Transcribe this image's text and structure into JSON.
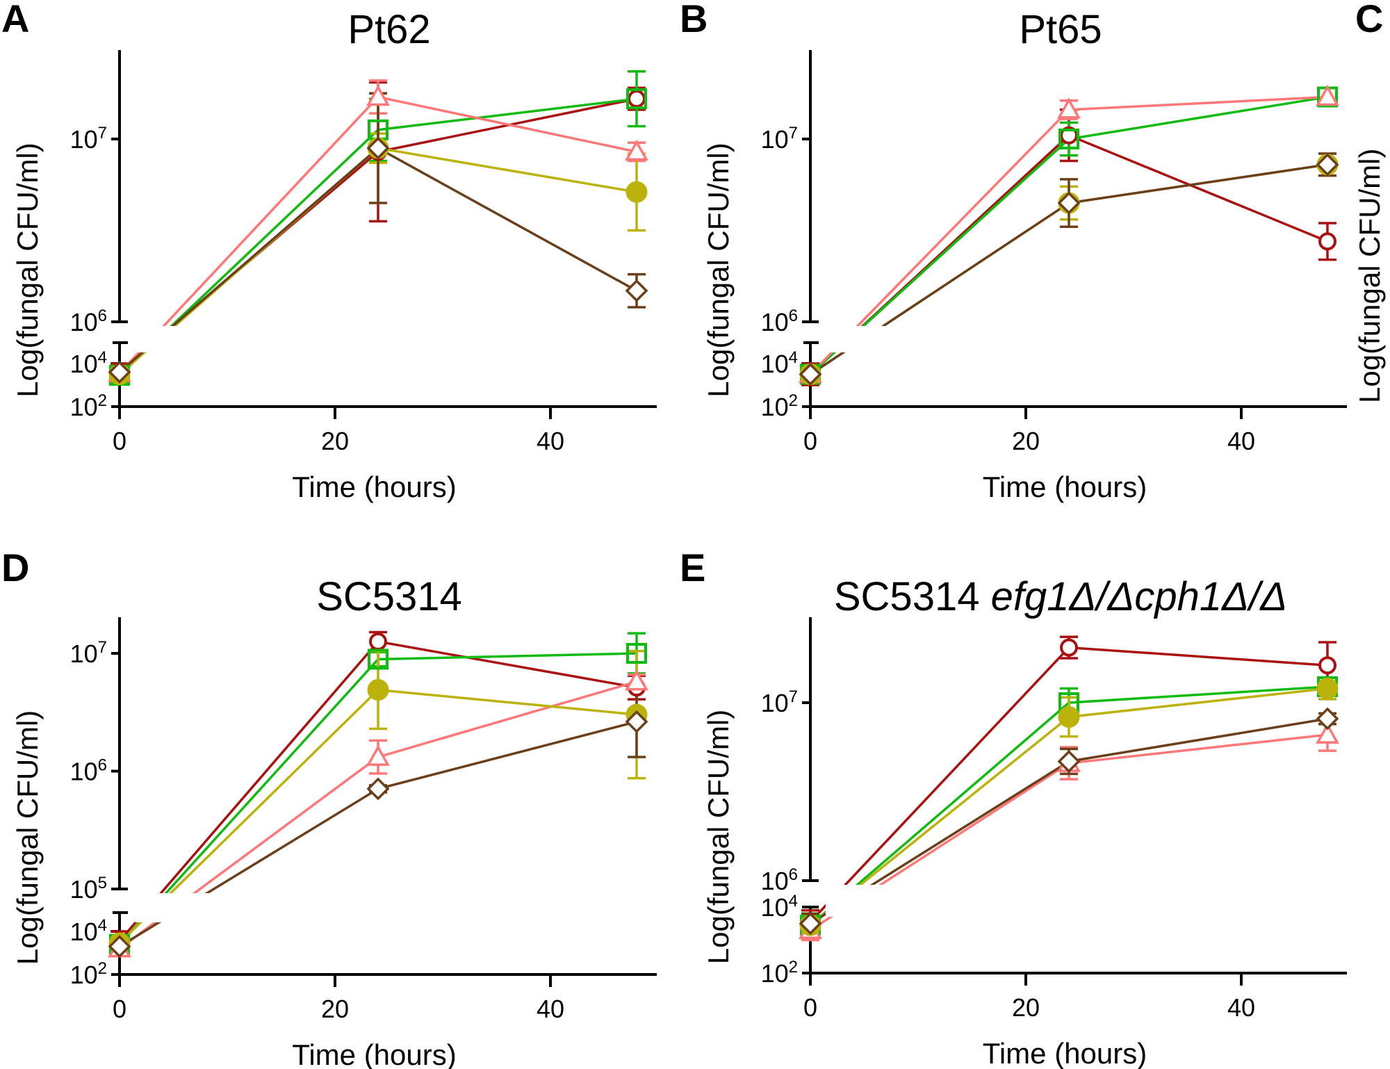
{
  "figure": {
    "panel_letters": [
      "A",
      "B",
      "C",
      "D",
      "E"
    ],
    "clipped_panel": {
      "letter": "C",
      "ylabel": "Log(fungal CFU/ml)"
    }
  },
  "series_styles": [
    {
      "id": "s1",
      "marker": "open-circle",
      "color": "#aa1111"
    },
    {
      "id": "s2",
      "marker": "open-square",
      "color": "#11bb11"
    },
    {
      "id": "s3",
      "marker": "open-triangle",
      "color": "#ff7777"
    },
    {
      "id": "s4",
      "marker": "filled-circle",
      "color": "#bbb30c"
    },
    {
      "id": "s5",
      "marker": "open-diamond",
      "color": "#6b3f1a"
    }
  ],
  "chart_data": [
    {
      "panel": "A",
      "type": "line",
      "title": "Pt62",
      "xlabel": "Time (hours)",
      "ylabel": "Log(fungal CFU/ml)",
      "yscale": "log (broken axis)",
      "x_ticks": [
        "0",
        "20",
        "40"
      ],
      "xlim": [
        0,
        50
      ],
      "y_ticks": [
        {
          "base": "10",
          "exp": "2"
        },
        {
          "base": "10",
          "exp": "4"
        },
        {
          "base": "10",
          "exp": "6"
        },
        {
          "base": "10",
          "exp": "7"
        }
      ],
      "y_break": [
        5.0,
        6.0
      ],
      "x": [
        0,
        24,
        48
      ],
      "series": [
        {
          "id": "s1",
          "log10_values": [
            3.65,
            6.93,
            7.22
          ],
          "log10_err": [
            0.35,
            0.38,
            0.06
          ]
        },
        {
          "id": "s2",
          "log10_values": [
            3.45,
            7.05,
            7.22
          ],
          "log10_err": [
            0.3,
            0.17,
            0.15
          ]
        },
        {
          "id": "s3",
          "log10_values": [
            3.55,
            7.23,
            6.93
          ],
          "log10_err": [
            0.3,
            0.09,
            0.05
          ]
        },
        {
          "id": "s4",
          "log10_values": [
            3.5,
            6.95,
            6.71
          ],
          "log10_err": [
            0.3,
            0.08,
            0.21
          ]
        },
        {
          "id": "s5",
          "log10_values": [
            3.6,
            6.95,
            6.17
          ],
          "log10_err": [
            0.35,
            0.3,
            0.09
          ]
        }
      ]
    },
    {
      "panel": "B",
      "type": "line",
      "title": "Pt65",
      "xlabel": "Time (hours)",
      "ylabel": "Log(fungal CFU/ml)",
      "yscale": "log (broken axis)",
      "x_ticks": [
        "0",
        "20",
        "40"
      ],
      "xlim": [
        0,
        50
      ],
      "y_ticks": [
        {
          "base": "10",
          "exp": "2"
        },
        {
          "base": "10",
          "exp": "4"
        },
        {
          "base": "10",
          "exp": "6"
        },
        {
          "base": "10",
          "exp": "7"
        }
      ],
      "y_break": [
        5.0,
        6.0
      ],
      "x": [
        0,
        24,
        48
      ],
      "series": [
        {
          "id": "s1",
          "log10_values": [
            3.5,
            7.02,
            6.44
          ],
          "log10_err": [
            0.5,
            0.14,
            0.1
          ]
        },
        {
          "id": "s2",
          "log10_values": [
            3.5,
            7.0,
            7.23
          ],
          "log10_err": [
            0.3,
            0.09,
            0.05
          ]
        },
        {
          "id": "s3",
          "log10_values": [
            3.5,
            7.16,
            7.23
          ],
          "log10_err": [
            0.3,
            0.05,
            0.05
          ]
        },
        {
          "id": "s4",
          "log10_values": [
            3.5,
            6.65,
            6.86
          ],
          "log10_err": [
            0.3,
            0.09,
            0.06
          ]
        },
        {
          "id": "s5",
          "log10_values": [
            3.5,
            6.65,
            6.86
          ],
          "log10_err": [
            0.3,
            0.13,
            0.06
          ]
        }
      ]
    },
    {
      "panel": "D",
      "type": "line",
      "title": "SC5314",
      "xlabel": "Time (hours)",
      "ylabel": "Log(fungal CFU/ml)",
      "yscale": "log (broken axis)",
      "x_ticks": [
        "0",
        "20",
        "40"
      ],
      "xlim": [
        0,
        50
      ],
      "y_ticks": [
        {
          "base": "10",
          "exp": "2"
        },
        {
          "base": "10",
          "exp": "4"
        },
        {
          "base": "10",
          "exp": "5"
        },
        {
          "base": "10",
          "exp": "6"
        },
        {
          "base": "10",
          "exp": "7"
        }
      ],
      "y_break": [
        4.5,
        5.0
      ],
      "x": [
        0,
        24,
        48
      ],
      "series": [
        {
          "id": "s1",
          "log10_values": [
            3.55,
            7.1,
            6.71
          ],
          "log10_err": [
            0.45,
            0.08,
            0.1
          ]
        },
        {
          "id": "s2",
          "log10_values": [
            3.4,
            6.95,
            7.0
          ],
          "log10_err": [
            0.2,
            0.06,
            0.17
          ]
        },
        {
          "id": "s3",
          "log10_values": [
            3.2,
            6.12,
            6.76
          ],
          "log10_err": [
            0.2,
            0.14,
            0.06
          ]
        },
        {
          "id": "s4",
          "log10_values": [
            3.45,
            6.69,
            6.48
          ],
          "log10_err": [
            0.25,
            0.33,
            0.54
          ]
        },
        {
          "id": "s5",
          "log10_values": [
            3.3,
            5.85,
            6.42
          ],
          "log10_err": [
            0.2,
            0.03,
            0.3
          ]
        }
      ]
    },
    {
      "panel": "E",
      "type": "line",
      "title": "SC5314 ",
      "title_italic": "efg1Δ/Δcph1Δ/Δ",
      "xlabel": "Time (hours)",
      "ylabel": "Log(fungal CFU/ml)",
      "yscale": "log (broken axis)",
      "x_ticks": [
        "0",
        "20",
        "40"
      ],
      "xlim": [
        0,
        50
      ],
      "y_ticks": [
        {
          "base": "10",
          "exp": "2"
        },
        {
          "base": "10",
          "exp": "4"
        },
        {
          "base": "10",
          "exp": "6"
        },
        {
          "base": "10",
          "exp": "7"
        }
      ],
      "y_break": [
        4.2,
        6.0
      ],
      "x": [
        0,
        24,
        48
      ],
      "series": [
        {
          "id": "s1",
          "log10_values": [
            3.55,
            7.31,
            7.21
          ],
          "log10_err": [
            0.35,
            0.06,
            0.13
          ]
        },
        {
          "id": "s2",
          "log10_values": [
            3.45,
            7.0,
            7.09
          ],
          "log10_err": [
            0.35,
            0.08,
            0.05
          ]
        },
        {
          "id": "s3",
          "log10_values": [
            3.3,
            6.66,
            6.82
          ],
          "log10_err": [
            0.3,
            0.09,
            0.09
          ]
        },
        {
          "id": "s4",
          "log10_values": [
            3.45,
            6.92,
            7.08
          ],
          "log10_err": [
            0.3,
            0.11,
            0.06
          ]
        },
        {
          "id": "s5",
          "log10_values": [
            3.5,
            6.67,
            6.91
          ],
          "log10_err": [
            0.3,
            0.07,
            0.03
          ]
        }
      ]
    }
  ]
}
